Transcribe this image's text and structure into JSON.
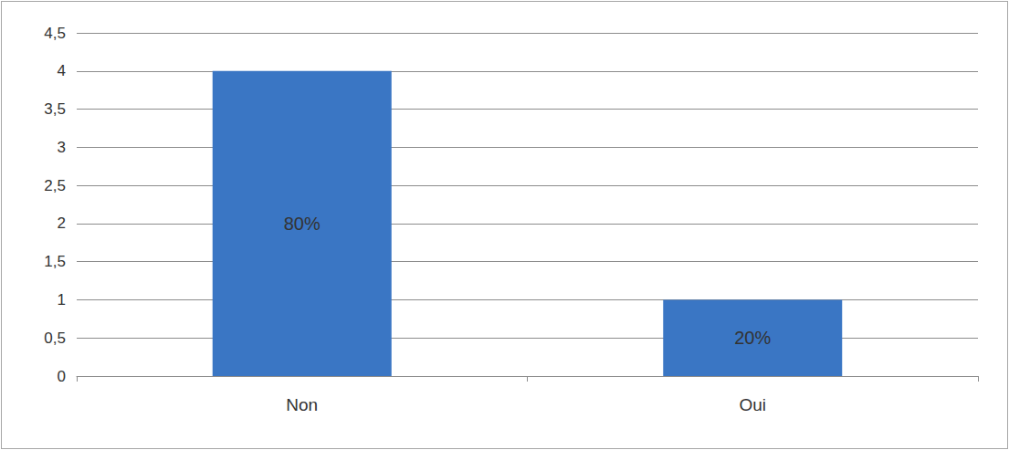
{
  "chart_data": {
    "type": "bar",
    "categories": [
      "Non",
      "Oui"
    ],
    "values": [
      4,
      1
    ],
    "color": "#3a76c4",
    "annotations": [
      {
        "category": "Non",
        "text": "80%"
      },
      {
        "category": "Oui",
        "text": "20%"
      }
    ],
    "ylim": [
      0,
      4.5
    ],
    "yticks": [
      0,
      {
        "value": 0.5,
        "label": "0,5"
      },
      1,
      {
        "value": 1.5,
        "label": "1,5"
      },
      2,
      {
        "value": 2.5,
        "label": "2,5"
      },
      3,
      {
        "value": 3.5,
        "label": "3,5"
      },
      4,
      {
        "value": 4.5,
        "label": "4,5"
      }
    ],
    "grid": true
  }
}
